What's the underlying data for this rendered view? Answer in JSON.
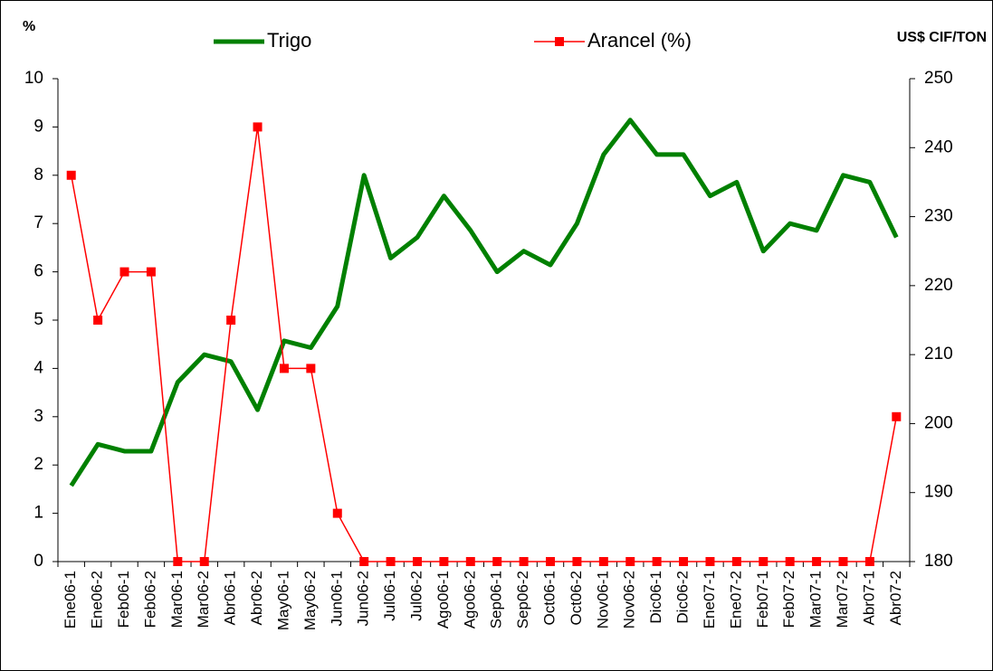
{
  "chart_data": {
    "type": "line",
    "y_label": "%",
    "y2_label": "US$ CIF/TON",
    "categories": [
      "Ene06-1",
      "Ene06-2",
      "Feb06-1",
      "Feb06-2",
      "Mar06-1",
      "Mar06-2",
      "Abr06-1",
      "Abr06-2",
      "May06-1",
      "May06-2",
      "Jun06-1",
      "Jun06-2",
      "Jul06-1",
      "Jul06-2",
      "Ago06-1",
      "Ago06-2",
      "Sep06-1",
      "Sep06-2",
      "Oct06-1",
      "Oct06-2",
      "Nov06-1",
      "Nov06-2",
      "Dic06-1",
      "Dic06-2",
      "Ene07-1",
      "Ene07-2",
      "Feb07-1",
      "Feb07-2",
      "Mar07-1",
      "Mar07-2",
      "Abr07-1",
      "Abr07-2"
    ],
    "series": [
      {
        "name": "Trigo",
        "color": "#008000",
        "axis": "y2",
        "marker": false,
        "values": [
          191,
          197,
          196,
          196,
          206,
          210,
          209,
          202,
          212,
          211,
          217,
          236,
          224,
          227,
          233,
          228,
          222,
          225,
          223,
          229,
          239,
          244,
          239,
          239,
          233,
          235,
          225,
          229,
          228,
          236,
          235,
          227
        ]
      },
      {
        "name": "Arancel (%)",
        "color": "#ff0000",
        "axis": "y",
        "marker": true,
        "values": [
          8,
          5,
          6,
          6,
          0,
          0,
          5,
          9,
          4,
          4,
          1,
          0,
          0,
          0,
          0,
          0,
          0,
          0,
          0,
          0,
          0,
          0,
          0,
          0,
          0,
          0,
          0,
          0,
          0,
          0,
          0,
          3
        ]
      }
    ],
    "ylim": [
      0,
      10
    ],
    "yticks": [
      0,
      1,
      2,
      3,
      4,
      5,
      6,
      7,
      8,
      9,
      10
    ],
    "y2lim": [
      180,
      250
    ],
    "y2ticks": [
      180,
      190,
      200,
      210,
      220,
      230,
      240,
      250
    ],
    "legend": "top",
    "grid": false
  }
}
